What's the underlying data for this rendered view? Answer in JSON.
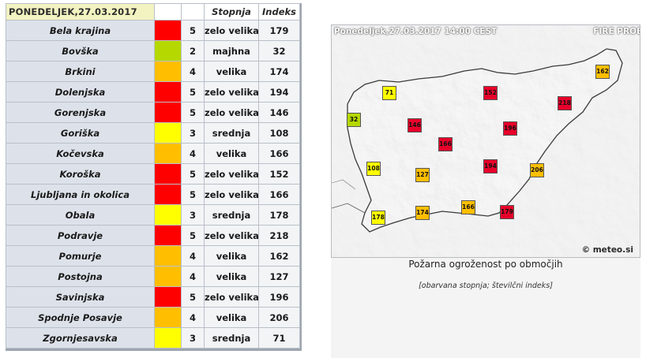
{
  "table": {
    "date_header": "PONEDELJEK,27.03.2017",
    "col_stopnja": "Stopnja",
    "col_indeks": "Indeks",
    "rows": [
      {
        "region": "Bela krajina",
        "level": "5",
        "label": "zelo velika",
        "index": "179",
        "color": "#ff0000"
      },
      {
        "region": "Bovška",
        "level": "2",
        "label": "majhna",
        "index": "32",
        "color": "#b5d800"
      },
      {
        "region": "Brkini",
        "level": "4",
        "label": "velika",
        "index": "174",
        "color": "#ffbf00"
      },
      {
        "region": "Dolenjska",
        "level": "5",
        "label": "zelo velika",
        "index": "194",
        "color": "#ff0000"
      },
      {
        "region": "Gorenjska",
        "level": "5",
        "label": "zelo velika",
        "index": "146",
        "color": "#ff0000"
      },
      {
        "region": "Goriška",
        "level": "3",
        "label": "srednja",
        "index": "108",
        "color": "#ffff00"
      },
      {
        "region": "Kočevska",
        "level": "4",
        "label": "velika",
        "index": "166",
        "color": "#ffbf00"
      },
      {
        "region": "Koroška",
        "level": "5",
        "label": "zelo velika",
        "index": "152",
        "color": "#ff0000"
      },
      {
        "region": "Ljubljana in okolica",
        "level": "5",
        "label": "zelo velika",
        "index": "166",
        "color": "#ff0000"
      },
      {
        "region": "Obala",
        "level": "3",
        "label": "srednja",
        "index": "178",
        "color": "#ffff00"
      },
      {
        "region": "Podravje",
        "level": "5",
        "label": "zelo velika",
        "index": "218",
        "color": "#ff0000"
      },
      {
        "region": "Pomurje",
        "level": "4",
        "label": "velika",
        "index": "162",
        "color": "#ffbf00"
      },
      {
        "region": "Postojna",
        "level": "4",
        "label": "velika",
        "index": "127",
        "color": "#ffbf00"
      },
      {
        "region": "Savinjska",
        "level": "5",
        "label": "zelo velika",
        "index": "196",
        "color": "#ff0000"
      },
      {
        "region": "Spodnje Posavje",
        "level": "4",
        "label": "velika",
        "index": "206",
        "color": "#ffbf00"
      },
      {
        "region": "Zgornjesavska",
        "level": "3",
        "label": "srednja",
        "index": "71",
        "color": "#ffff00"
      }
    ]
  },
  "map": {
    "title": "Ponedeljek,27.03.2017 14:00 CEST",
    "subtitle": "FIRE PROB",
    "credit": "© meteo.si",
    "markers": [
      {
        "value": "71",
        "color": "#ffff00"
      },
      {
        "value": "152",
        "color": "#e8002a"
      },
      {
        "value": "162",
        "color": "#ffbf00"
      },
      {
        "value": "218",
        "color": "#e8002a"
      },
      {
        "value": "32",
        "color": "#b5d800"
      },
      {
        "value": "146",
        "color": "#e8002a"
      },
      {
        "value": "196",
        "color": "#e8002a"
      },
      {
        "value": "166",
        "color": "#e8002a"
      },
      {
        "value": "108",
        "color": "#ffff00"
      },
      {
        "value": "127",
        "color": "#ffbf00"
      },
      {
        "value": "194",
        "color": "#e8002a"
      },
      {
        "value": "206",
        "color": "#ffbf00"
      },
      {
        "value": "178",
        "color": "#ffff00"
      },
      {
        "value": "174",
        "color": "#ffbf00"
      },
      {
        "value": "166",
        "color": "#ffbf00"
      },
      {
        "value": "179",
        "color": "#e8002a"
      }
    ]
  },
  "caption": "Požarna ogroženost po območjih",
  "note": "[obarvana stopnja; številčni indeks]"
}
